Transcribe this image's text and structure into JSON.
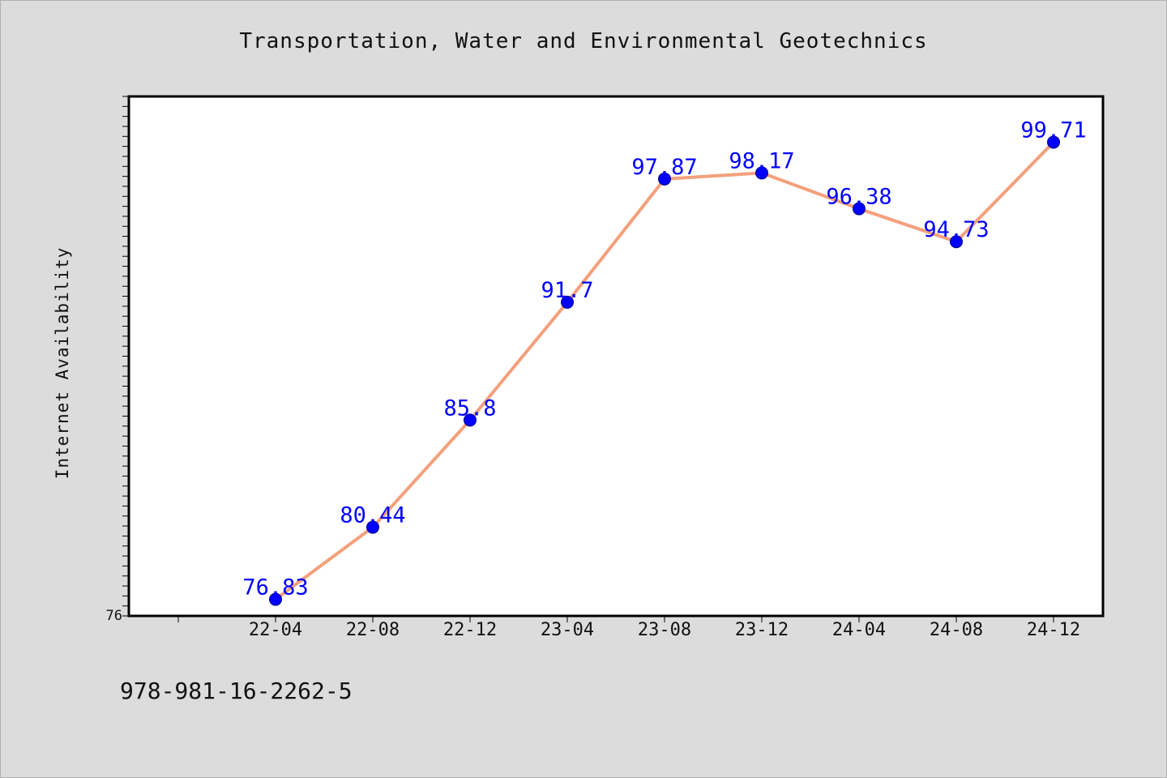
{
  "chart_data": {
    "type": "line",
    "title": "Transportation, Water and Environmental Geotechnics",
    "xlabel": "",
    "ylabel": "Internet Availability",
    "categories": [
      "22-04",
      "22-08",
      "22-12",
      "23-04",
      "23-08",
      "23-12",
      "24-04",
      "24-08",
      "24-12"
    ],
    "series": [
      {
        "values": [
          76.83,
          80.44,
          85.8,
          91.7,
          97.87,
          98.17,
          96.38,
          94.73,
          99.71
        ]
      }
    ],
    "data_labels": [
      "76.83",
      "80.44",
      "85.8",
      "91.7",
      "97.87",
      "98.17",
      "96.38",
      "94.73",
      "99.71"
    ],
    "y_tick_labels": [
      "76"
    ],
    "ylim": [
      76,
      102
    ],
    "grid": false,
    "legend": "none",
    "colors": {
      "line": "#f4a07c",
      "marker": "#0000ff",
      "label": "#0000ff",
      "background": "#dcdcdc",
      "plot_area": "#ffffff"
    }
  },
  "footnote": "978-981-16-2262-5"
}
